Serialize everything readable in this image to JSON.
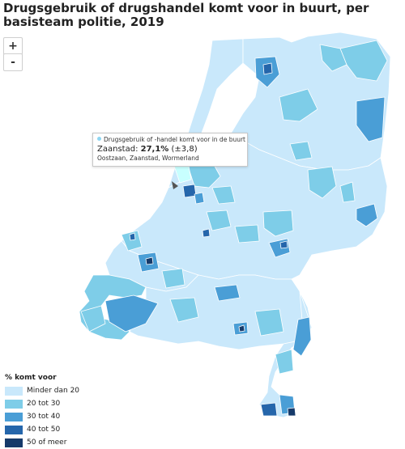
{
  "title": "Drugsgebruik of drugshandel komt voor in buurt, per basisteam politie, 2019",
  "zoom": {
    "in_label": "+",
    "out_label": "-"
  },
  "tooltip": {
    "series_label": "Drugsgebruik of -handel komt voor in de buurt",
    "region": "Zaanstad",
    "value": "27,1%",
    "margin": "(±3,8)",
    "subtitle": "Oostzaan, Zaanstad, Wormerland",
    "dot_color": "#8ed6f2"
  },
  "legend": {
    "title": "% komt voor",
    "items": [
      {
        "label": "Minder dan 20",
        "color": "#c9e8fb"
      },
      {
        "label": "20 tot 30",
        "color": "#7ecde8"
      },
      {
        "label": "30 tot 40",
        "color": "#4a9ed6"
      },
      {
        "label": "40 tot 50",
        "color": "#2566ab"
      },
      {
        "label": "50 of meer",
        "color": "#163a6a"
      }
    ]
  },
  "colors": {
    "border": "#ffffff",
    "hover": "#c8ffff"
  }
}
